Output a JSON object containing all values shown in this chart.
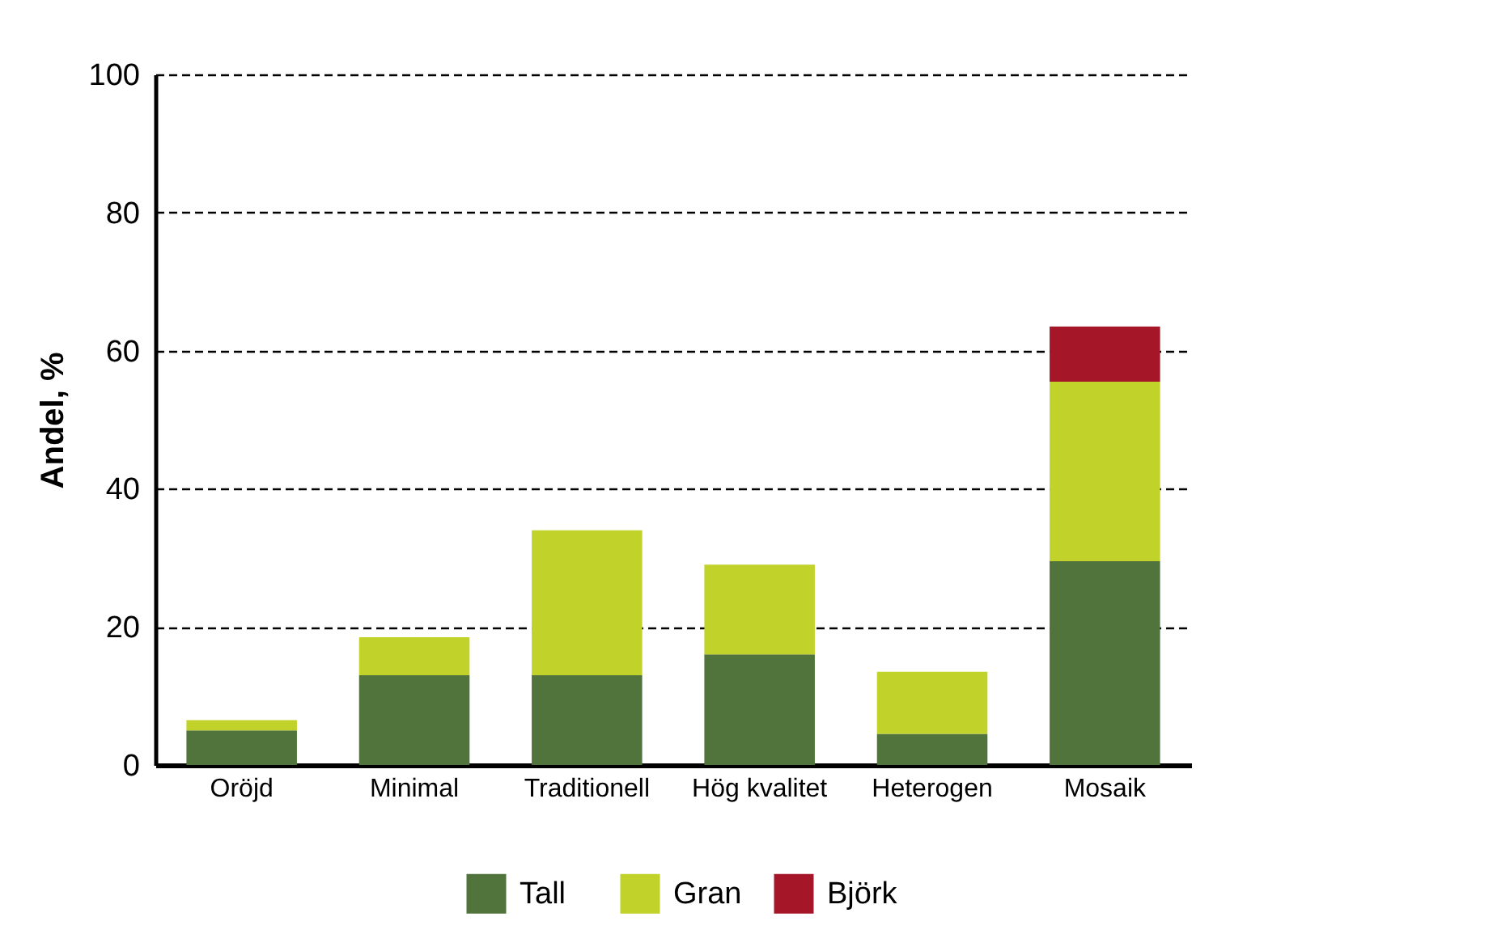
{
  "chart_data": {
    "type": "bar",
    "stacked": true,
    "categories": [
      "Oröjd",
      "Minimal",
      "Traditionell",
      "Hög kvalitet",
      "Heterogen",
      "Mosaik"
    ],
    "ylabel": "Andel, %",
    "ylim": [
      0,
      100
    ],
    "yticks": [
      0,
      20,
      40,
      60,
      80,
      100
    ],
    "grid": "y",
    "legend": "bottom",
    "series": [
      {
        "name": "Tall",
        "color": "#50743c",
        "values": [
          5,
          13,
          13,
          16,
          4.5,
          29.5
        ]
      },
      {
        "name": "Gran",
        "color": "#c1d22a",
        "values": [
          1.5,
          5.5,
          21,
          13,
          9,
          26
        ]
      },
      {
        "name": "Björk",
        "color": "#a51628",
        "values": [
          null,
          null,
          null,
          null,
          null,
          8
        ]
      }
    ]
  }
}
